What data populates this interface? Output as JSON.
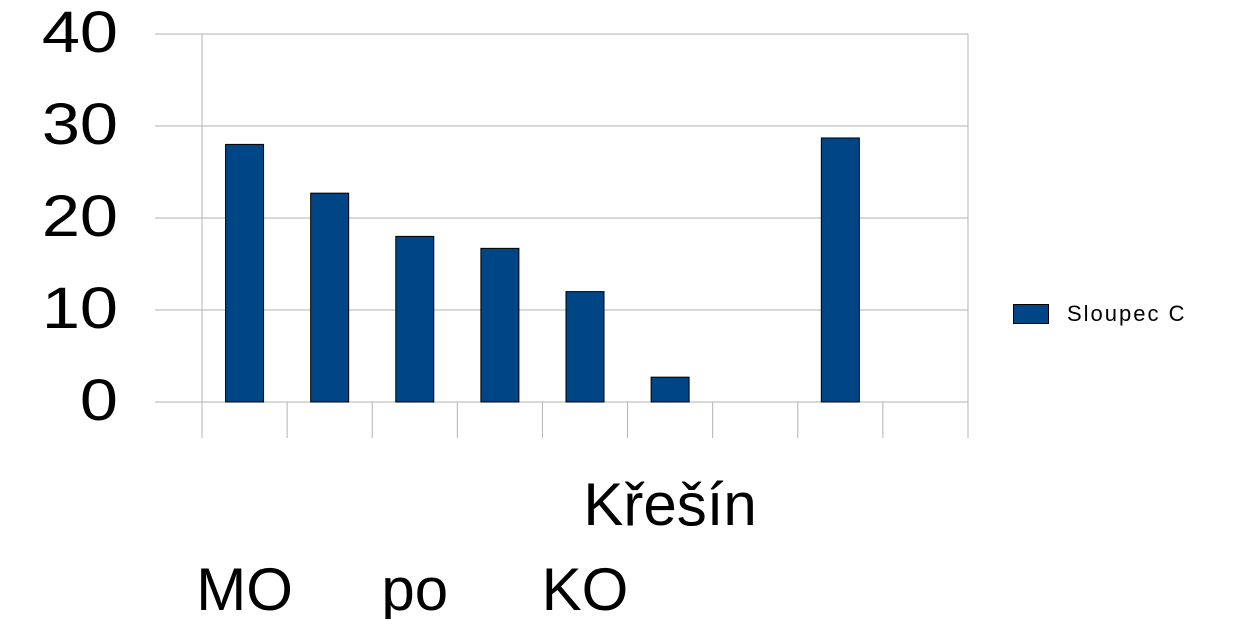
{
  "chart_data": {
    "type": "bar",
    "categories": [
      "MO",
      "",
      "po",
      "",
      "KO",
      "Křešín",
      "",
      "",
      ""
    ],
    "series": [
      {
        "name": "Sloupec C",
        "values": [
          28,
          22.7,
          18,
          16.7,
          12,
          2.7,
          null,
          28.7,
          null
        ]
      }
    ],
    "ylim": [
      0,
      40
    ],
    "yticks": [
      0,
      10,
      20,
      30,
      40
    ],
    "grid": true,
    "legend_position": "right",
    "title": "",
    "xlabel": "",
    "ylabel": "",
    "colors": {
      "bar_fill": "#004586",
      "bar_stroke": "#000000",
      "grid": "#b3b3b3",
      "text": "#000000"
    }
  }
}
